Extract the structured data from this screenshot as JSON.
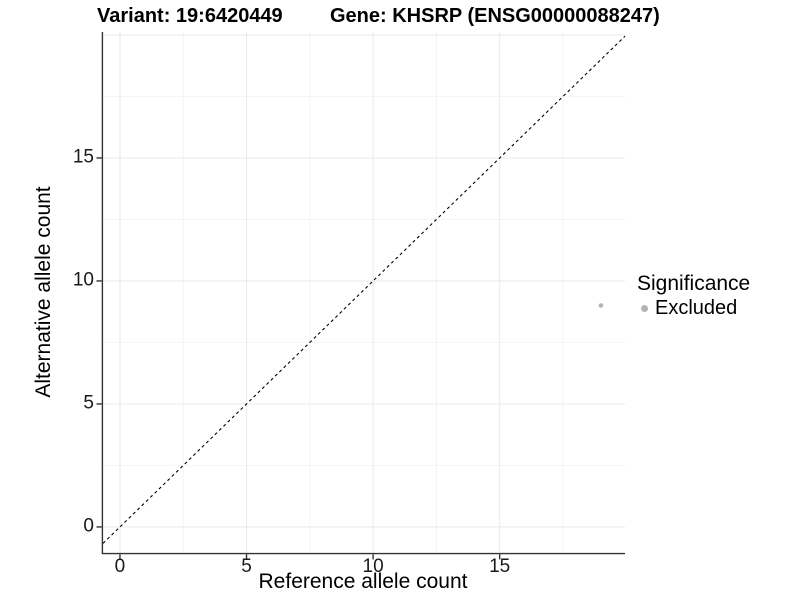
{
  "figure": {
    "background": "#ffffff"
  },
  "chart_data": {
    "type": "scatter",
    "titles": {
      "left": "Variant: 19:6420449",
      "right": "Gene: KHSRP (ENSG00000088247)"
    },
    "xlabel": "Reference allele count",
    "ylabel": "Alternative allele count",
    "xlim": [
      -0.67,
      19.95
    ],
    "ylim": [
      -1.06,
      20.12
    ],
    "x_ticks": [
      0,
      5,
      10,
      15
    ],
    "y_ticks": [
      0,
      5,
      10,
      15
    ],
    "minor_step": 2.5,
    "major_step": 5,
    "grid": "major+minor",
    "colors": {
      "major_grid": "#e9e9e9",
      "minor_grid": "#f4f4f4",
      "axis": "#333333",
      "tick_text": "#1a1a1a",
      "point": "#b3b3b3"
    },
    "identity_line": {
      "slope": 1,
      "intercept": 0,
      "style": "dashed",
      "color": "#000000"
    },
    "points": [
      {
        "x": 19,
        "y": 9,
        "series": "Excluded",
        "color": "#b3b3b3",
        "radius": 2.3
      }
    ],
    "legend": {
      "title": "Significance",
      "position": "right",
      "items": [
        {
          "label": "Excluded",
          "color": "#b3b3b3"
        }
      ]
    }
  }
}
